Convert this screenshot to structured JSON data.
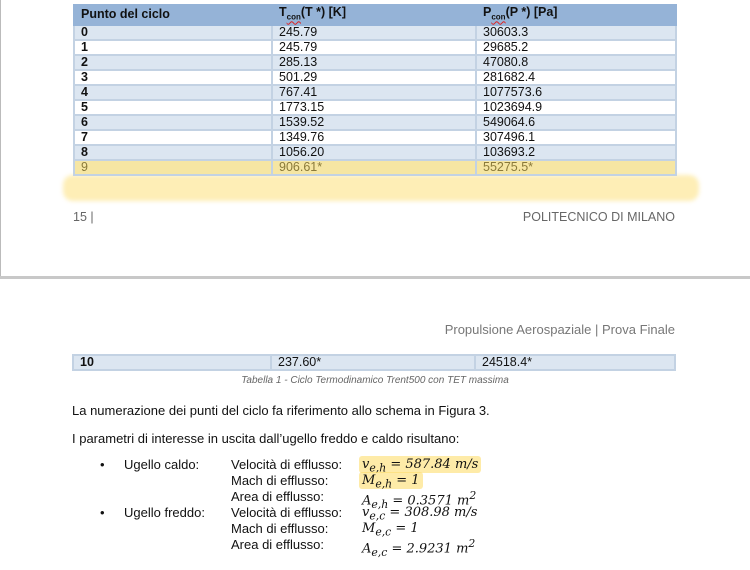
{
  "table": {
    "headers": [
      "Punto del ciclo",
      "T",
      "(T *) [K]",
      "P",
      "(P *) [Pa]"
    ],
    "header_subscript": "con",
    "rows": [
      [
        "0",
        "245.79",
        "30603.3"
      ],
      [
        "1",
        "245.79",
        "29685.2"
      ],
      [
        "2",
        "285.13",
        "47080.8"
      ],
      [
        "3",
        "501.29",
        "281682.4"
      ],
      [
        "4",
        "767.41",
        "1077573.6"
      ],
      [
        "5",
        "1773.15",
        "1023694.9"
      ],
      [
        "6",
        "1539.52",
        "549064.6"
      ],
      [
        "7",
        "1349.76",
        "307496.1"
      ],
      [
        "8",
        "1056.20",
        "103693.2"
      ],
      [
        "9",
        "906.61*",
        "55275.5*"
      ]
    ],
    "continued_row": [
      "10",
      "237.60*",
      "24518.4*"
    ],
    "caption": "Tabella 1 - Ciclo Termodinamico Trent500 con TET massima"
  },
  "page1_footer": {
    "page_number": "15 |",
    "institution": "POLITECNICO DI MILANO"
  },
  "page2_header": "Propulsione Aerospaziale | Prova Finale",
  "paragraphs": [
    "La numerazione dei punti del ciclo fa riferimento allo schema in Figura 3.",
    "I parametri di interesse in uscita dall’ugello freddo e caldo risultano:"
  ],
  "nozzles": [
    {
      "name": "Ugello caldo:",
      "params": [
        {
          "label": "Velocità di efflusso:",
          "value": "v<sub>e,h</sub> = 587.84 m/s",
          "highlighted": true
        },
        {
          "label": "Mach di efflusso:",
          "value": "M<sub>e,h</sub> = 1",
          "highlighted": true
        },
        {
          "label": "Area di efflusso:",
          "value": "A<sub>e,h</sub> = 0.3571 m<sup>2</sup>",
          "highlighted": false
        }
      ]
    },
    {
      "name": "Ugello freddo:",
      "params": [
        {
          "label": "Velocità di efflusso:",
          "value": "v<sub>e,c</sub> = 308.98 m/s",
          "highlighted": false
        },
        {
          "label": "Mach di efflusso:",
          "value": "M<sub>e,c</sub> = 1",
          "highlighted": false
        },
        {
          "label": "Area di efflusso:",
          "value": "A<sub>e,c</sub> = 2.9231 m<sup>2</sup>",
          "highlighted": false
        }
      ]
    }
  ],
  "colors": {
    "table_header": "#95b3d7",
    "row_alt": "#dce6f1",
    "highlight": "#fdde6e"
  }
}
